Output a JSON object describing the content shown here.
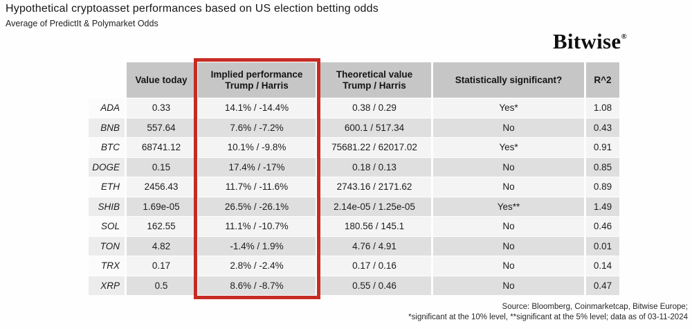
{
  "header": {
    "title": "Hypothetical cryptoasset performances based on US election betting odds",
    "subtitle": "Average of PredictIt & Polymarket Odds"
  },
  "logo": {
    "text": "Bitwise",
    "registered": "®"
  },
  "chart_data": {
    "type": "table",
    "title": "Hypothetical cryptoasset performances based on US election betting odds",
    "subtitle": "Average of PredictIt & Polymarket Odds",
    "columns": [
      "Value today",
      "Implied performance\nTrump / Harris",
      "Theoretical value\nTrump / Harris",
      "Statistically significant?",
      "R^2"
    ],
    "row_label_column": "",
    "rows": [
      [
        "ADA",
        "0.33",
        "14.1% / -14.4%",
        "0.38 / 0.29",
        "Yes*",
        "1.08"
      ],
      [
        "BNB",
        "557.64",
        "7.6% / -7.2%",
        "600.1 / 517.34",
        "No",
        "0.43"
      ],
      [
        "BTC",
        "68741.12",
        "10.1% / -9.8%",
        "75681.22 / 62017.02",
        "Yes*",
        "0.91"
      ],
      [
        "DOGE",
        "0.15",
        "17.4% / -17%",
        "0.18 / 0.13",
        "No",
        "0.85"
      ],
      [
        "ETH",
        "2456.43",
        "11.7% / -11.6%",
        "2743.16 / 2171.62",
        "No",
        "0.89"
      ],
      [
        "SHIB",
        "1.69e-05",
        "26.5% / -26.1%",
        "2.14e-05 / 1.25e-05",
        "Yes**",
        "1.49"
      ],
      [
        "SOL",
        "162.55",
        "11.1% / -10.7%",
        "180.56 / 145.1",
        "No",
        "0.46"
      ],
      [
        "TON",
        "4.82",
        "-1.4% / 1.9%",
        "4.76 / 4.91",
        "No",
        "0.01"
      ],
      [
        "TRX",
        "0.17",
        "2.8% / -2.4%",
        "0.17 / 0.16",
        "No",
        "0.14"
      ],
      [
        "XRP",
        "0.5",
        "8.6% / -8.7%",
        "0.55 / 0.46",
        "No",
        "0.47"
      ]
    ],
    "highlight": {
      "column_index": 1,
      "color": "#c62b24"
    },
    "layout": {
      "legend": "none",
      "grid": "striped-rows"
    }
  },
  "footer": {
    "source_line": "Source: Bloomberg, Coinmarketcap, Bitwise Europe;",
    "significance_line": "*significant at the 10% level, **significant at the 5% level; data as of 03-11-2024"
  },
  "colors": {
    "highlight_red": "#c62b24",
    "header_gray": "#c6c6c6",
    "row_light": "#f4f4f4",
    "row_dark": "#dfdfdf"
  }
}
